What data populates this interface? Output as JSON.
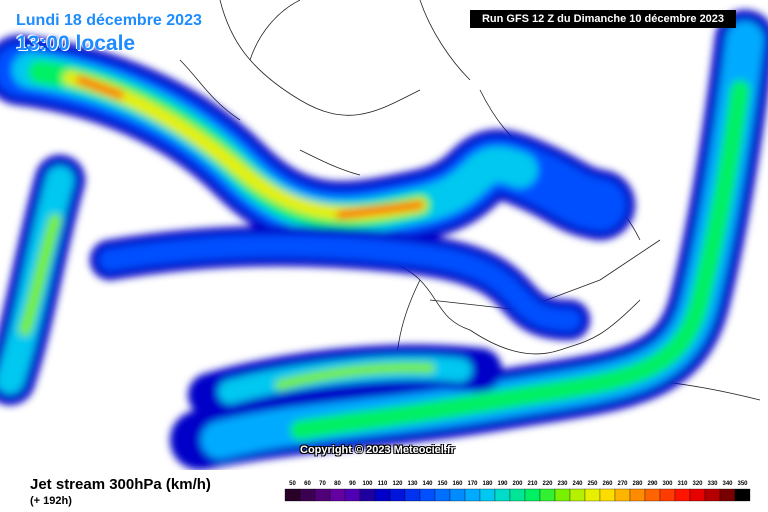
{
  "header": {
    "date": "Lundi 18 décembre 2023",
    "hour": "13:00 locale",
    "run": "Run GFS 12 Z du Dimanche 10 décembre 2023"
  },
  "copyright": "Copyright © 2023 Meteociel.fr",
  "footer": {
    "title": "Jet stream 300hPa (km/h)",
    "lead": "(+ 192h)"
  },
  "scale": {
    "labels": [
      50,
      60,
      70,
      80,
      90,
      100,
      110,
      120,
      130,
      140,
      150,
      160,
      170,
      180,
      190,
      200,
      210,
      220,
      230,
      240,
      250,
      260,
      270,
      280,
      290,
      300,
      310,
      320,
      330,
      340,
      350
    ],
    "colors": [
      "#280028",
      "#3c0050",
      "#500078",
      "#6400a0",
      "#5000b4",
      "#1e00a0",
      "#0000c8",
      "#0014dc",
      "#0032f0",
      "#0050ff",
      "#006eff",
      "#008cff",
      "#00aaff",
      "#00c8f0",
      "#00dcc8",
      "#00e696",
      "#00f064",
      "#32f032",
      "#78f000",
      "#b4f000",
      "#e6f000",
      "#ffdc00",
      "#ffb400",
      "#ff8c00",
      "#ff6400",
      "#ff3c00",
      "#ff1400",
      "#e60000",
      "#b40000",
      "#780000",
      "#000000"
    ]
  }
}
